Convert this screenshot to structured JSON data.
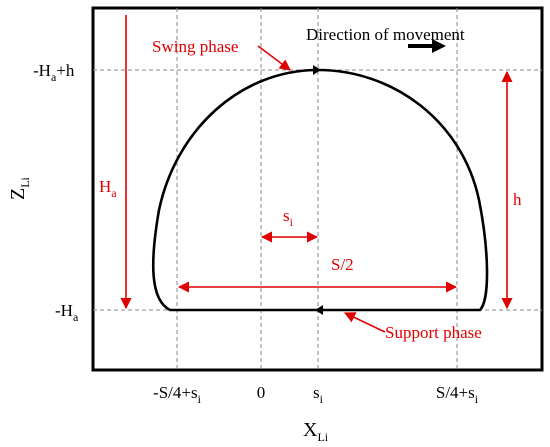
{
  "annotations": {
    "direction": "Direction of movement",
    "swing": "Swing phase",
    "support": "Support phase",
    "height_total": {
      "main": "H",
      "sub": "a"
    },
    "step_height": "h",
    "offset": {
      "main": "s",
      "sub": "i"
    },
    "half_stride": "S/2"
  },
  "y_axis": {
    "title": {
      "main": "Z",
      "sub": "Li"
    },
    "labels": [
      {
        "main": "-H",
        "sub": "a",
        "tail": "+h"
      },
      {
        "main": "-H",
        "sub": "a"
      }
    ]
  },
  "x_axis": {
    "title": {
      "main": "X",
      "sub": "Li"
    },
    "labels": [
      {
        "main": "-S/4+s",
        "sub": "i"
      },
      {
        "main": "0"
      },
      {
        "main": "s",
        "sub": "i"
      },
      {
        "main": "S/4+s",
        "sub": "i"
      }
    ]
  }
}
